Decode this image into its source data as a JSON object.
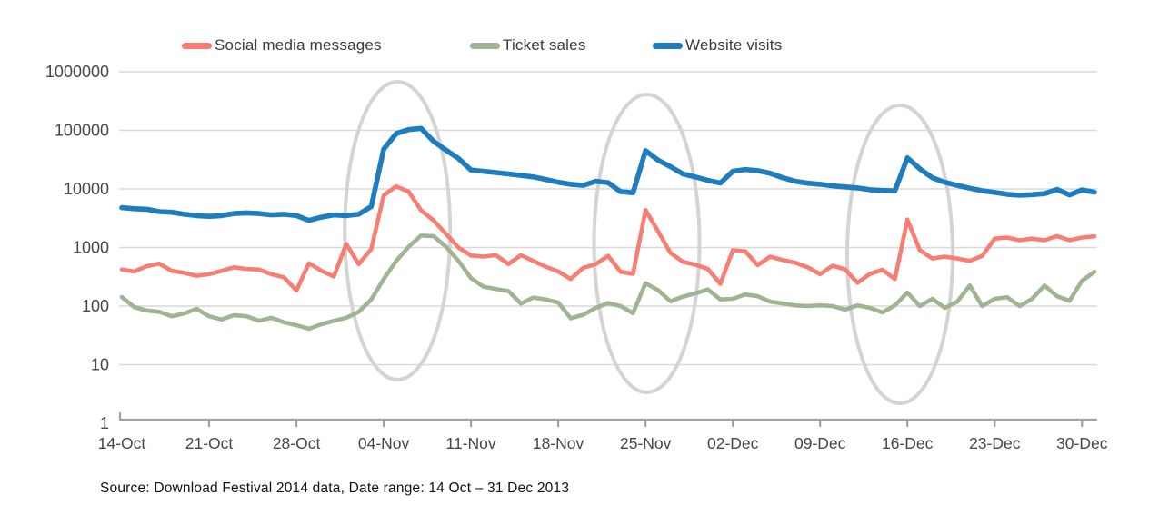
{
  "source_note": "Source: Download Festival 2014 data, Date range: 14 Oct – 31 Dec 2013",
  "colors": {
    "background": "#ffffff",
    "gridline": "#d9d9d9",
    "axis_line": "#a3a3a3",
    "axis_text": "#474747",
    "legend_text": "#3c3c3c",
    "highlight_ellipse": "#d4d4d4",
    "social_media_messages": "#f87d72",
    "ticket_sales": "#a0b494",
    "website_visits": "#1d7dbf"
  },
  "chart_data": {
    "type": "line",
    "title": "",
    "xlabel": "",
    "ylabel": "",
    "y_scale": "log",
    "ylim": [
      1,
      1000000
    ],
    "grid": "horizontal gridlines at each power of 10",
    "legend_position": "top",
    "frequency": "daily",
    "start_date": "14-Oct-2013",
    "end_date": "31-Dec-2013",
    "days_total": 79,
    "x_axis": {
      "tick_labels": [
        "14-Oct",
        "21-Oct",
        "28-Oct",
        "04-Nov",
        "11-Nov",
        "18-Nov",
        "25-Nov",
        "02-Dec",
        "09-Dec",
        "16-Dec",
        "23-Dec",
        "30-Dec"
      ],
      "tick_day_indices": [
        0,
        7,
        14,
        21,
        28,
        35,
        42,
        49,
        56,
        63,
        70,
        77
      ]
    },
    "y_axis": {
      "tick_labels_bottom_to_top": [
        "1",
        "10",
        "100",
        "1000",
        "10000",
        "100000",
        "1000000"
      ]
    },
    "series": [
      {
        "id": "social-media-messages",
        "name": "Social media messages",
        "color": "#f87d72",
        "values": [
          420,
          390,
          480,
          530,
          400,
          370,
          330,
          350,
          400,
          460,
          430,
          420,
          350,
          310,
          185,
          540,
          400,
          320,
          1150,
          520,
          940,
          7800,
          11100,
          9000,
          4300,
          2900,
          1700,
          1000,
          730,
          700,
          740,
          520,
          740,
          590,
          470,
          390,
          290,
          450,
          520,
          720,
          385,
          355,
          4350,
          1900,
          810,
          570,
          510,
          430,
          240,
          900,
          860,
          500,
          700,
          610,
          550,
          460,
          350,
          490,
          425,
          250,
          355,
          415,
          290,
          3000,
          900,
          650,
          700,
          650,
          590,
          720,
          1420,
          1480,
          1330,
          1420,
          1330,
          1570,
          1330,
          1480,
          1550
        ]
      },
      {
        "id": "ticket-sales",
        "name": "Ticket sales",
        "color": "#a0b494",
        "values": [
          143,
          96,
          84,
          80,
          67,
          75,
          90,
          67,
          59,
          70,
          67,
          56,
          63,
          53,
          47,
          41,
          49,
          56,
          63,
          80,
          130,
          290,
          590,
          1030,
          1600,
          1560,
          1030,
          590,
          300,
          215,
          195,
          180,
          110,
          140,
          130,
          115,
          62,
          71,
          93,
          113,
          100,
          76,
          247,
          187,
          121,
          145,
          165,
          192,
          130,
          133,
          158,
          147,
          119,
          111,
          103,
          100,
          103,
          100,
          87,
          103,
          93,
          78,
          103,
          170,
          100,
          133,
          93,
          119,
          225,
          100,
          133,
          142,
          100,
          133,
          225,
          147,
          123,
          271,
          385
        ]
      },
      {
        "id": "website-visits",
        "name": "Website visits",
        "color": "#1d7dbf",
        "values": [
          4800,
          4600,
          4500,
          4100,
          4000,
          3700,
          3500,
          3400,
          3500,
          3800,
          3900,
          3800,
          3600,
          3700,
          3500,
          2900,
          3300,
          3600,
          3500,
          3700,
          5000,
          48000,
          88000,
          103000,
          108000,
          65000,
          46000,
          33000,
          21000,
          20000,
          19000,
          18000,
          17000,
          16000,
          14500,
          13000,
          12000,
          11500,
          13500,
          12800,
          9000,
          8600,
          45000,
          31000,
          24000,
          18000,
          16000,
          14000,
          12600,
          20000,
          21500,
          20500,
          18500,
          15500,
          13500,
          12500,
          12000,
          11300,
          10800,
          10400,
          9700,
          9400,
          9300,
          34000,
          22000,
          15500,
          13000,
          11500,
          10300,
          9300,
          8700,
          8100,
          7800,
          8000,
          8300,
          9800,
          7900,
          9600,
          8800
        ]
      }
    ],
    "annotations": {
      "ellipses": [
        {
          "label": "04-Nov spike highlight",
          "day_center": 22.1
        },
        {
          "label": "25-Nov spike highlight",
          "day_center": 42.1
        },
        {
          "label": "16-Dec spike highlight",
          "day_center": 62.4
        }
      ]
    }
  }
}
